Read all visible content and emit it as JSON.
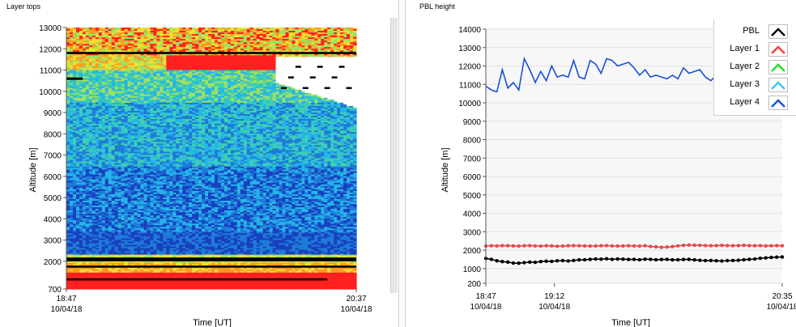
{
  "left_panel": {
    "title": "Layer tops",
    "ylabel": "Altitude [m]",
    "xlabel": "Time [UT]",
    "y_ticks": [
      "13000",
      "12000",
      "11000",
      "10000",
      "9000",
      "8000",
      "7000",
      "6000",
      "5000",
      "4000",
      "3000",
      "2000",
      "700"
    ],
    "x_ticks": [
      {
        "time": "18:47",
        "date": "10/04/18"
      },
      {
        "time": "20:37",
        "date": "10/04/18"
      }
    ]
  },
  "right_panel": {
    "title": "PBL height",
    "ylabel": "Altitude [m]",
    "xlabel": "Time [UT]",
    "y_ticks": [
      "14000",
      "13000",
      "12000",
      "11000",
      "10000",
      "9000",
      "8000",
      "7000",
      "6000",
      "5000",
      "4000",
      "3000",
      "2000",
      "1000",
      "200"
    ],
    "x_ticks": [
      {
        "time": "18:47",
        "date": "10/04/18"
      },
      {
        "time": "19:12",
        "date": "10/04/18"
      },
      {
        "time": "20:35",
        "date": "10/04/18"
      }
    ]
  },
  "legend": [
    {
      "label": "PBL",
      "color": "#000000"
    },
    {
      "label": "Layer 1",
      "color": "#ff3b3b"
    },
    {
      "label": "Layer 2",
      "color": "#22dd22"
    },
    {
      "label": "Layer 3",
      "color": "#33c8ff"
    },
    {
      "label": "Layer 4",
      "color": "#1a4fd6"
    }
  ],
  "chart_data": [
    {
      "type": "heatmap",
      "title": "Layer tops",
      "xlabel": "Time [UT]",
      "ylabel": "Altitude [m]",
      "x_range": [
        "18:47",
        "20:37"
      ],
      "ylim": [
        700,
        13000
      ],
      "colormap": [
        "#1840c0",
        "#1f7bd8",
        "#25b5e8",
        "#3fd0b0",
        "#9fe060",
        "#f0e030",
        "#ff9a20",
        "#ff2020"
      ],
      "grid": false
    },
    {
      "type": "line",
      "title": "PBL height",
      "xlabel": "Time [UT]",
      "ylabel": "Altitude [m]",
      "ylim": [
        200,
        14000
      ],
      "x_range_minutes": [
        0,
        108
      ],
      "x_tick_labels": [
        "18:47",
        "19:12",
        "20:35"
      ],
      "grid": true,
      "legend_position": "top-right",
      "series": [
        {
          "name": "PBL",
          "color": "#000000",
          "x": [
            0,
            2,
            4,
            6,
            8,
            10,
            12,
            14,
            16,
            18,
            20,
            22,
            24,
            26,
            28,
            30,
            32,
            34,
            36,
            38,
            40,
            42,
            44,
            46,
            48,
            50,
            52,
            54,
            56,
            58,
            60,
            62,
            64,
            66,
            68,
            70,
            72,
            74,
            76,
            78,
            80,
            82,
            84,
            86,
            88,
            90,
            92,
            94,
            96,
            98,
            100,
            102,
            104,
            106,
            108
          ],
          "y": [
            1550,
            1500,
            1420,
            1380,
            1350,
            1300,
            1290,
            1320,
            1350,
            1340,
            1380,
            1400,
            1390,
            1420,
            1430,
            1410,
            1440,
            1470,
            1480,
            1500,
            1520,
            1510,
            1530,
            1500,
            1520,
            1510,
            1490,
            1500,
            1480,
            1510,
            1500,
            1480,
            1490,
            1500,
            1470,
            1480,
            1490,
            1500,
            1470,
            1450,
            1430,
            1440,
            1420,
            1410,
            1430,
            1440,
            1450,
            1480,
            1500,
            1520,
            1560,
            1580,
            1600,
            1620,
            1630
          ]
        },
        {
          "name": "Layer 1",
          "color": "#e84848",
          "x": [
            0,
            2,
            4,
            6,
            8,
            10,
            12,
            14,
            16,
            18,
            20,
            22,
            24,
            26,
            28,
            30,
            32,
            34,
            36,
            38,
            40,
            42,
            44,
            46,
            48,
            50,
            52,
            54,
            56,
            58,
            60,
            62,
            64,
            66,
            68,
            70,
            72,
            74,
            76,
            78,
            80,
            82,
            84,
            86,
            88,
            90,
            92,
            94,
            96,
            98,
            100,
            102,
            104,
            106,
            108
          ],
          "y": [
            2220,
            2240,
            2230,
            2250,
            2240,
            2230,
            2220,
            2240,
            2250,
            2230,
            2220,
            2240,
            2230,
            2210,
            2220,
            2240,
            2250,
            2240,
            2230,
            2220,
            2230,
            2240,
            2250,
            2230,
            2220,
            2230,
            2240,
            2230,
            2220,
            2240,
            2200,
            2180,
            2150,
            2170,
            2190,
            2230,
            2260,
            2280,
            2270,
            2260,
            2250,
            2240,
            2250,
            2260,
            2250,
            2240,
            2250,
            2260,
            2250,
            2240,
            2250,
            2230,
            2240,
            2250,
            2240
          ]
        },
        {
          "name": "Layer 4",
          "color": "#1a4fd6",
          "x": [
            0,
            2,
            4,
            6,
            8,
            10,
            12,
            14,
            16,
            18,
            20,
            22,
            24,
            26,
            28,
            30,
            32,
            34,
            36,
            38,
            40,
            42,
            44,
            46,
            48,
            50,
            52,
            54,
            56,
            58,
            60,
            62,
            64,
            66,
            68,
            70,
            72,
            74,
            76,
            78,
            80,
            82,
            84,
            86,
            88,
            90,
            92,
            94,
            96,
            98,
            100,
            102,
            104,
            106,
            108
          ],
          "y": [
            10900,
            10700,
            10600,
            11800,
            10800,
            11100,
            10700,
            12400,
            11800,
            11100,
            11700,
            11200,
            12000,
            11400,
            11500,
            11400,
            12300,
            11400,
            11300,
            12300,
            12100,
            11600,
            12400,
            12300,
            12000,
            12100,
            12200,
            11900,
            11500,
            11800,
            11400,
            11500,
            11400,
            11300,
            11500,
            11300,
            11900,
            11600,
            11700,
            11800,
            11400,
            11200,
            11500,
            11300,
            11100,
            11000,
            10900,
            11000,
            10900,
            11300,
            null,
            null,
            null,
            null,
            null
          ]
        }
      ]
    }
  ]
}
